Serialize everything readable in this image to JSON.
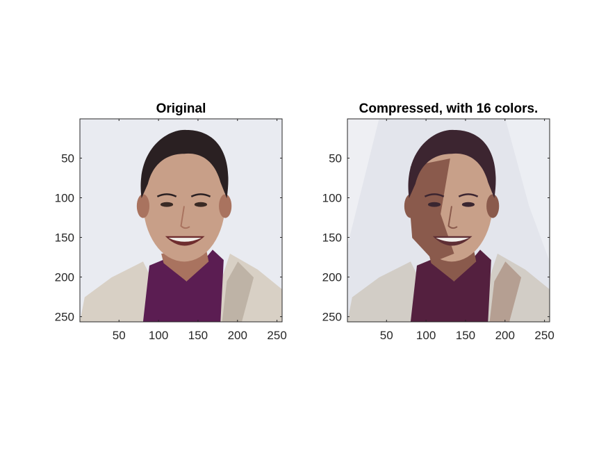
{
  "figure": {
    "panels": [
      {
        "id": "original",
        "title": "Original",
        "image_kind": "photo",
        "xticks": [
          50,
          100,
          150,
          200,
          250
        ],
        "yticks": [
          50,
          100,
          150,
          200,
          250
        ],
        "xlim": [
          0.5,
          256.5
        ],
        "ylim": [
          0.5,
          256.5
        ],
        "palette": {
          "background": "#e9ebf1",
          "skin": "#c89f88",
          "skin_shadow": "#a9735f",
          "hair": "#2a2022",
          "shirt": "#5b1d52",
          "jacket": "#d8d0c5",
          "jacket_shadow": "#beb3a6",
          "teeth": "#f2efe9",
          "mouth": "#6e2d2e",
          "eye": "#3a2a24"
        }
      },
      {
        "id": "compressed",
        "title": "Compressed, with 16 colors.",
        "image_kind": "quantized",
        "xticks": [
          50,
          100,
          150,
          200,
          250
        ],
        "yticks": [
          50,
          100,
          150,
          200,
          250
        ],
        "xlim": [
          0.5,
          256.5
        ],
        "ylim": [
          0.5,
          256.5
        ],
        "palette": {
          "background": "#e3e5ec",
          "skin": "#c8a089",
          "skin_shadow": "#8a5a4c",
          "hair": "#3c2530",
          "shirt": "#54203f",
          "jacket": "#d2cdc6",
          "jacket_shadow": "#b59f92",
          "teeth": "#f3f0ec",
          "mouth": "#5e2e34",
          "eye": "#3a2630"
        }
      }
    ]
  },
  "chart_data": [
    {
      "type": "image",
      "title": "Original",
      "xlabel": "",
      "ylabel": "",
      "xlim": [
        0.5,
        256.5
      ],
      "ylim": [
        0.5,
        256.5
      ],
      "xticks": [
        50,
        100,
        150,
        200,
        250
      ],
      "yticks": [
        50,
        100,
        150,
        200,
        250
      ],
      "image_size": [
        256,
        256
      ]
    },
    {
      "type": "image",
      "title": "Compressed, with 16 colors.",
      "xlabel": "",
      "ylabel": "",
      "xlim": [
        0.5,
        256.5
      ],
      "ylim": [
        0.5,
        256.5
      ],
      "xticks": [
        50,
        100,
        150,
        200,
        250
      ],
      "yticks": [
        50,
        100,
        150,
        200,
        250
      ],
      "image_size": [
        256,
        256
      ],
      "colors": 16
    }
  ]
}
